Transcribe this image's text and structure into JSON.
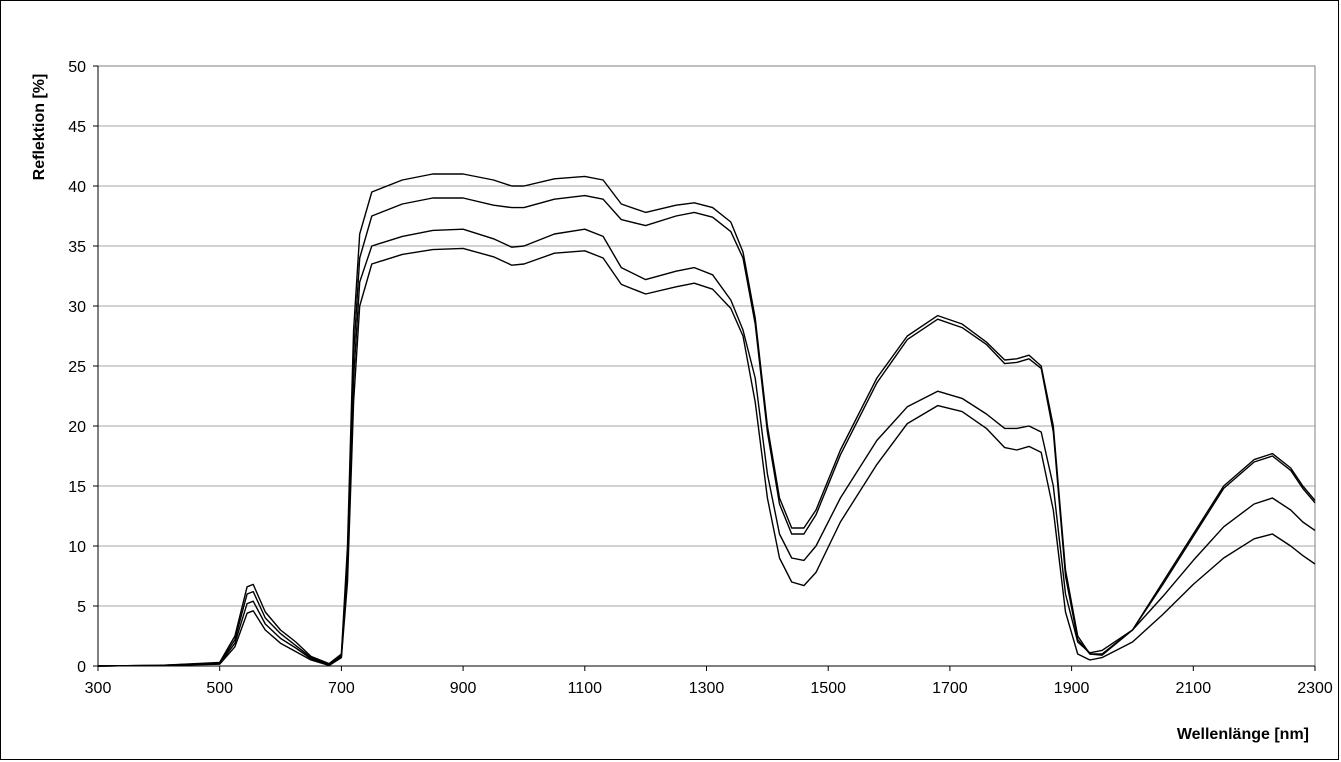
{
  "chart_data": {
    "type": "line",
    "title": "",
    "xlabel": "Wellenlänge [nm]",
    "ylabel": "Reflektion [%]",
    "xlim": [
      300,
      2300
    ],
    "ylim": [
      0,
      50
    ],
    "x_ticks": [
      300,
      500,
      700,
      900,
      1100,
      1300,
      1500,
      1700,
      1900,
      2100,
      2300
    ],
    "y_ticks": [
      0,
      5,
      10,
      15,
      20,
      25,
      30,
      35,
      40,
      45,
      50
    ],
    "grid": "horizontal",
    "legend": "none",
    "colors": {
      "line": "#000000",
      "grid": "#a6a6a6",
      "axis": "#808080"
    },
    "series": [
      {
        "points": [
          [
            300,
            0
          ],
          [
            400,
            0.05
          ],
          [
            500,
            0.3
          ],
          [
            525,
            2.5
          ],
          [
            545,
            6.6
          ],
          [
            555,
            6.8
          ],
          [
            575,
            4.5
          ],
          [
            600,
            3.0
          ],
          [
            625,
            2.0
          ],
          [
            650,
            0.8
          ],
          [
            680,
            0.2
          ],
          [
            700,
            1.0
          ],
          [
            710,
            10
          ],
          [
            720,
            28
          ],
          [
            730,
            36
          ],
          [
            750,
            39.5
          ],
          [
            800,
            40.5
          ],
          [
            850,
            41.0
          ],
          [
            900,
            41.0
          ],
          [
            950,
            40.5
          ],
          [
            980,
            40.0
          ],
          [
            1000,
            40.0
          ],
          [
            1050,
            40.6
          ],
          [
            1100,
            40.8
          ],
          [
            1130,
            40.5
          ],
          [
            1160,
            38.5
          ],
          [
            1200,
            37.8
          ],
          [
            1250,
            38.4
          ],
          [
            1280,
            38.6
          ],
          [
            1310,
            38.2
          ],
          [
            1340,
            37.0
          ],
          [
            1360,
            34.5
          ],
          [
            1380,
            29.0
          ],
          [
            1400,
            20.0
          ],
          [
            1420,
            14.0
          ],
          [
            1440,
            11.5
          ],
          [
            1460,
            11.5
          ],
          [
            1480,
            13.0
          ],
          [
            1520,
            18.0
          ],
          [
            1580,
            24.0
          ],
          [
            1630,
            27.5
          ],
          [
            1680,
            29.2
          ],
          [
            1720,
            28.5
          ],
          [
            1760,
            27.0
          ],
          [
            1790,
            25.5
          ],
          [
            1810,
            25.6
          ],
          [
            1830,
            25.9
          ],
          [
            1850,
            25.0
          ],
          [
            1870,
            20.0
          ],
          [
            1890,
            8.0
          ],
          [
            1910,
            2.5
          ],
          [
            1930,
            1.0
          ],
          [
            1950,
            0.9
          ],
          [
            2000,
            3.0
          ],
          [
            2050,
            7.0
          ],
          [
            2100,
            11.0
          ],
          [
            2150,
            15.0
          ],
          [
            2200,
            17.2
          ],
          [
            2230,
            17.7
          ],
          [
            2260,
            16.5
          ],
          [
            2280,
            15.0
          ],
          [
            2300,
            13.8
          ]
        ]
      },
      {
        "points": [
          [
            300,
            0
          ],
          [
            400,
            0.05
          ],
          [
            500,
            0.25
          ],
          [
            525,
            2.2
          ],
          [
            545,
            6.0
          ],
          [
            555,
            6.2
          ],
          [
            575,
            4.0
          ],
          [
            600,
            2.7
          ],
          [
            625,
            1.7
          ],
          [
            650,
            0.7
          ],
          [
            680,
            0.15
          ],
          [
            700,
            0.9
          ],
          [
            710,
            9
          ],
          [
            720,
            26
          ],
          [
            730,
            34
          ],
          [
            750,
            37.5
          ],
          [
            800,
            38.5
          ],
          [
            850,
            39.0
          ],
          [
            900,
            39.0
          ],
          [
            950,
            38.4
          ],
          [
            980,
            38.2
          ],
          [
            1000,
            38.2
          ],
          [
            1050,
            38.9
          ],
          [
            1100,
            39.2
          ],
          [
            1130,
            38.9
          ],
          [
            1160,
            37.2
          ],
          [
            1200,
            36.7
          ],
          [
            1250,
            37.5
          ],
          [
            1280,
            37.8
          ],
          [
            1310,
            37.4
          ],
          [
            1340,
            36.2
          ],
          [
            1360,
            34.0
          ],
          [
            1380,
            28.5
          ],
          [
            1400,
            19.5
          ],
          [
            1420,
            13.5
          ],
          [
            1440,
            11.0
          ],
          [
            1460,
            11.0
          ],
          [
            1480,
            12.6
          ],
          [
            1520,
            17.6
          ],
          [
            1580,
            23.6
          ],
          [
            1630,
            27.2
          ],
          [
            1680,
            28.9
          ],
          [
            1720,
            28.2
          ],
          [
            1760,
            26.8
          ],
          [
            1790,
            25.2
          ],
          [
            1810,
            25.3
          ],
          [
            1830,
            25.6
          ],
          [
            1850,
            24.8
          ],
          [
            1870,
            19.5
          ],
          [
            1890,
            7.5
          ],
          [
            1910,
            2.2
          ],
          [
            1930,
            1.0
          ],
          [
            1950,
            1.0
          ],
          [
            2000,
            3.0
          ],
          [
            2050,
            6.8
          ],
          [
            2100,
            10.8
          ],
          [
            2150,
            14.8
          ],
          [
            2200,
            17.0
          ],
          [
            2230,
            17.5
          ],
          [
            2260,
            16.3
          ],
          [
            2280,
            14.8
          ],
          [
            2300,
            13.6
          ]
        ]
      },
      {
        "points": [
          [
            300,
            0
          ],
          [
            400,
            0.05
          ],
          [
            500,
            0.2
          ],
          [
            525,
            1.9
          ],
          [
            545,
            5.2
          ],
          [
            555,
            5.4
          ],
          [
            575,
            3.5
          ],
          [
            600,
            2.3
          ],
          [
            625,
            1.5
          ],
          [
            650,
            0.6
          ],
          [
            680,
            0.1
          ],
          [
            700,
            0.8
          ],
          [
            710,
            8
          ],
          [
            720,
            24
          ],
          [
            730,
            32
          ],
          [
            750,
            35.0
          ],
          [
            800,
            35.8
          ],
          [
            850,
            36.3
          ],
          [
            900,
            36.4
          ],
          [
            950,
            35.6
          ],
          [
            980,
            34.9
          ],
          [
            1000,
            35.0
          ],
          [
            1050,
            36.0
          ],
          [
            1100,
            36.4
          ],
          [
            1130,
            35.8
          ],
          [
            1160,
            33.2
          ],
          [
            1200,
            32.2
          ],
          [
            1250,
            32.9
          ],
          [
            1280,
            33.2
          ],
          [
            1310,
            32.6
          ],
          [
            1340,
            30.5
          ],
          [
            1360,
            28.0
          ],
          [
            1380,
            24.0
          ],
          [
            1400,
            16.0
          ],
          [
            1420,
            11.0
          ],
          [
            1440,
            9.0
          ],
          [
            1460,
            8.8
          ],
          [
            1480,
            10.0
          ],
          [
            1520,
            14.0
          ],
          [
            1580,
            18.8
          ],
          [
            1630,
            21.6
          ],
          [
            1680,
            22.9
          ],
          [
            1720,
            22.3
          ],
          [
            1760,
            21.0
          ],
          [
            1790,
            19.8
          ],
          [
            1810,
            19.8
          ],
          [
            1830,
            20.0
          ],
          [
            1850,
            19.5
          ],
          [
            1870,
            15.0
          ],
          [
            1890,
            6.0
          ],
          [
            1910,
            2.0
          ],
          [
            1930,
            1.1
          ],
          [
            1950,
            1.3
          ],
          [
            2000,
            3.0
          ],
          [
            2050,
            5.8
          ],
          [
            2100,
            8.8
          ],
          [
            2150,
            11.6
          ],
          [
            2200,
            13.5
          ],
          [
            2230,
            14.0
          ],
          [
            2260,
            13.0
          ],
          [
            2280,
            12.0
          ],
          [
            2300,
            11.3
          ]
        ]
      },
      {
        "points": [
          [
            300,
            0
          ],
          [
            400,
            0.05
          ],
          [
            500,
            0.15
          ],
          [
            525,
            1.6
          ],
          [
            545,
            4.4
          ],
          [
            555,
            4.6
          ],
          [
            575,
            3.0
          ],
          [
            600,
            1.9
          ],
          [
            625,
            1.2
          ],
          [
            650,
            0.5
          ],
          [
            680,
            0.05
          ],
          [
            700,
            0.7
          ],
          [
            710,
            7
          ],
          [
            720,
            22
          ],
          [
            730,
            30
          ],
          [
            750,
            33.5
          ],
          [
            800,
            34.3
          ],
          [
            850,
            34.7
          ],
          [
            900,
            34.8
          ],
          [
            950,
            34.1
          ],
          [
            980,
            33.4
          ],
          [
            1000,
            33.5
          ],
          [
            1050,
            34.4
          ],
          [
            1100,
            34.6
          ],
          [
            1130,
            34.0
          ],
          [
            1160,
            31.8
          ],
          [
            1200,
            31.0
          ],
          [
            1250,
            31.6
          ],
          [
            1280,
            31.9
          ],
          [
            1310,
            31.4
          ],
          [
            1340,
            29.8
          ],
          [
            1360,
            27.5
          ],
          [
            1380,
            22.0
          ],
          [
            1400,
            14.0
          ],
          [
            1420,
            9.0
          ],
          [
            1440,
            7.0
          ],
          [
            1460,
            6.7
          ],
          [
            1480,
            7.8
          ],
          [
            1520,
            12.0
          ],
          [
            1580,
            16.8
          ],
          [
            1630,
            20.2
          ],
          [
            1680,
            21.7
          ],
          [
            1720,
            21.2
          ],
          [
            1760,
            19.8
          ],
          [
            1790,
            18.2
          ],
          [
            1810,
            18.0
          ],
          [
            1830,
            18.3
          ],
          [
            1850,
            17.8
          ],
          [
            1870,
            13.0
          ],
          [
            1890,
            4.5
          ],
          [
            1910,
            1.0
          ],
          [
            1930,
            0.5
          ],
          [
            1950,
            0.7
          ],
          [
            2000,
            2.0
          ],
          [
            2050,
            4.3
          ],
          [
            2100,
            6.8
          ],
          [
            2150,
            9.0
          ],
          [
            2200,
            10.6
          ],
          [
            2230,
            11.0
          ],
          [
            2260,
            10.0
          ],
          [
            2280,
            9.2
          ],
          [
            2300,
            8.5
          ]
        ]
      }
    ]
  }
}
